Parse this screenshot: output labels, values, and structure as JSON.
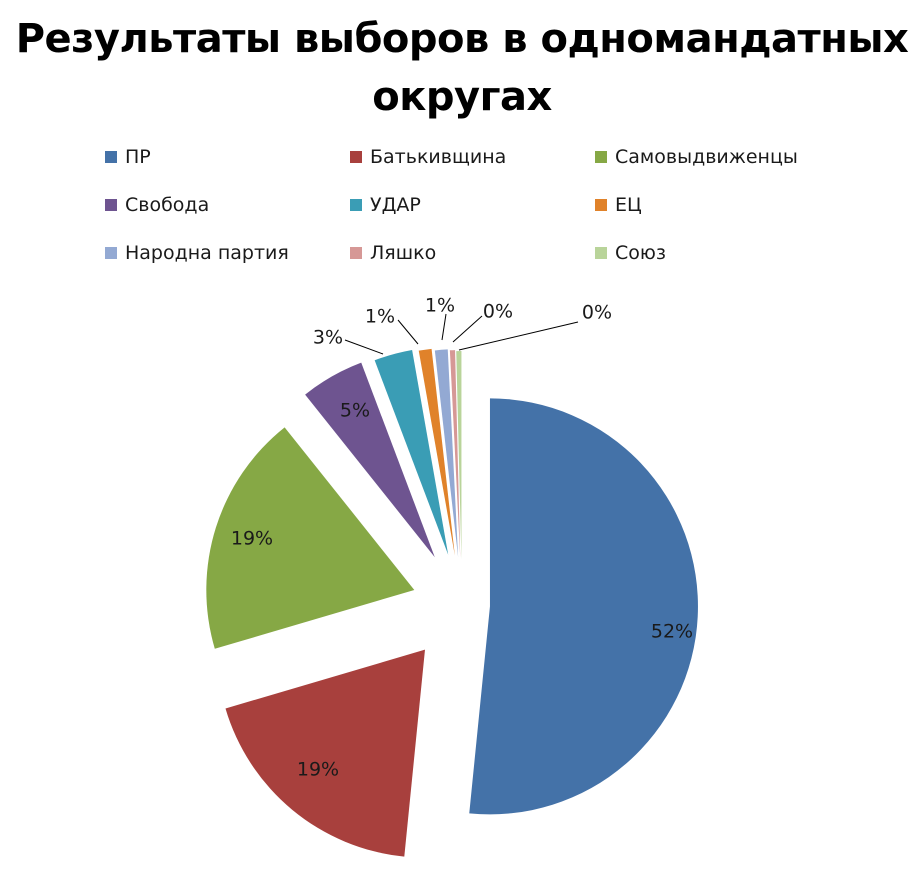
{
  "chart_data": {
    "type": "pie",
    "title_lines": [
      "Результаты выборов в одномандатных",
      "округах"
    ],
    "categories": [
      "ПР",
      "Батькивщина",
      "Самовыдвиженцы",
      "Свобода",
      "УДАР",
      "ЕЦ",
      "Народна партия",
      "Ляшко",
      "Союз"
    ],
    "values": [
      52,
      19,
      19,
      5,
      3,
      1,
      1,
      0,
      0
    ],
    "data_labels": [
      "52%",
      "19%",
      "19%",
      "5%",
      "3%",
      "1%",
      "1%",
      "0%",
      "0%"
    ],
    "colors": [
      "#4472A8",
      "#A8403D",
      "#86A845",
      "#6E5490",
      "#3A9DB5",
      "#E0822A",
      "#93A9D3",
      "#D69896",
      "#B9D49A"
    ],
    "legend_position": "top",
    "exploded": true
  }
}
